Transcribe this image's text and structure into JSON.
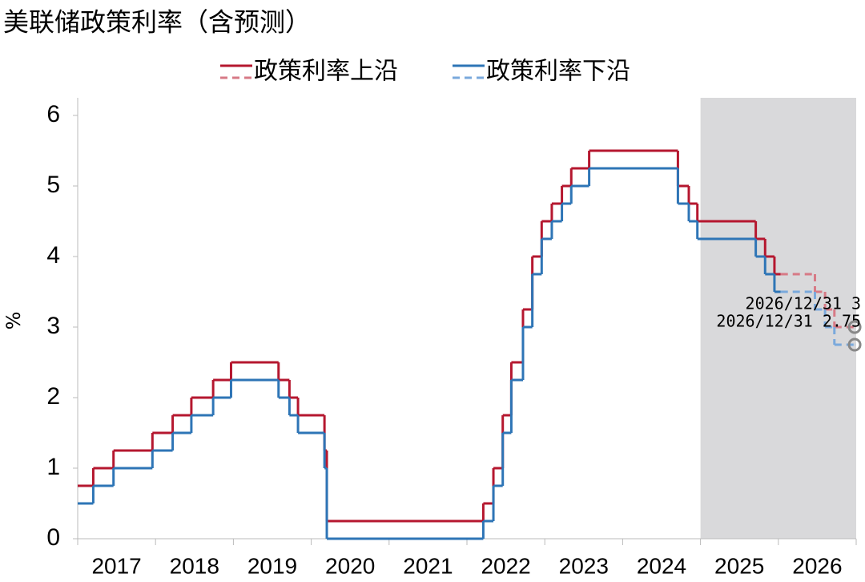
{
  "chart_data": {
    "type": "line",
    "step": "post",
    "title": "美联储政策利率（含预测）",
    "y_label": "%",
    "legend": "top",
    "shaded_xrange": [
      2025,
      2027
    ],
    "xlim": [
      2017,
      2027
    ],
    "xticks": [
      2017,
      2018,
      2019,
      2020,
      2021,
      2022,
      2023,
      2024,
      2025,
      2026,
      2027
    ],
    "xtick_labels": [
      "2017",
      "2018",
      "2019",
      "2020",
      "2021",
      "2022",
      "2023",
      "2024",
      "2025",
      "2026"
    ],
    "ylim": [
      0,
      6
    ],
    "yticks": [
      0,
      1,
      2,
      3,
      4,
      5,
      6
    ],
    "series": [
      {
        "name": "政策利率上沿",
        "color": "#b5172f",
        "x": [
          2017,
          2017.2,
          2017.46,
          2017.96,
          2018.22,
          2018.46,
          2018.74,
          2018.97,
          2019.58,
          2019.72,
          2019.83,
          2020.17,
          2020.2,
          2022.21,
          2022.34,
          2022.46,
          2022.57,
          2022.72,
          2022.84,
          2022.96,
          2023.09,
          2023.22,
          2023.34,
          2023.57,
          2024.71,
          2024.85,
          2024.96,
          2025.71,
          2025.83,
          2025.95,
          2026.03
        ],
        "values": [
          0.75,
          1,
          1.25,
          1.5,
          1.75,
          2,
          2.25,
          2.5,
          2.25,
          2,
          1.75,
          1.25,
          0.25,
          0.5,
          1,
          1.75,
          2.5,
          3.25,
          4,
          4.5,
          4.75,
          5,
          5.25,
          5.5,
          5,
          4.75,
          4.5,
          4.25,
          4,
          3.75,
          3.75
        ]
      },
      {
        "name": "政策利率下沿",
        "color": "#2e75b6",
        "x": [
          2017,
          2017.2,
          2017.46,
          2017.96,
          2018.22,
          2018.46,
          2018.74,
          2018.97,
          2019.58,
          2019.72,
          2019.83,
          2020.17,
          2020.2,
          2022.21,
          2022.34,
          2022.46,
          2022.57,
          2022.72,
          2022.84,
          2022.96,
          2023.09,
          2023.22,
          2023.34,
          2023.57,
          2024.71,
          2024.85,
          2024.96,
          2025.71,
          2025.83,
          2025.95,
          2026.03
        ],
        "values": [
          0.5,
          0.75,
          1,
          1.25,
          1.5,
          1.75,
          2,
          2.25,
          2,
          1.75,
          1.5,
          1,
          0,
          0.25,
          0.75,
          1.5,
          2.25,
          3,
          3.75,
          4.25,
          4.5,
          4.75,
          5,
          5.25,
          4.75,
          4.5,
          4.25,
          4,
          3.75,
          3.5,
          3.5
        ]
      },
      {
        "name": "政策利率上沿",
        "color": "#d77a86",
        "dashed": true,
        "x": [
          2026.03,
          2026.47,
          2026.6,
          2026.72,
          2026.98
        ],
        "values": [
          3.75,
          3.5,
          3.25,
          3,
          3
        ]
      },
      {
        "name": "政策利率下沿",
        "color": "#7aa9dc",
        "dashed": true,
        "x": [
          2026.03,
          2026.47,
          2026.6,
          2026.72,
          2026.98
        ],
        "values": [
          3.5,
          3.25,
          3,
          2.75,
          2.75
        ]
      }
    ],
    "annotations": [
      {
        "text": "2026/12/31  3",
        "x": 2026.98,
        "y": 3,
        "series": 2
      },
      {
        "text": "2026/12/31  2.75",
        "x": 2026.98,
        "y": 2.75,
        "series": 3
      }
    ]
  }
}
